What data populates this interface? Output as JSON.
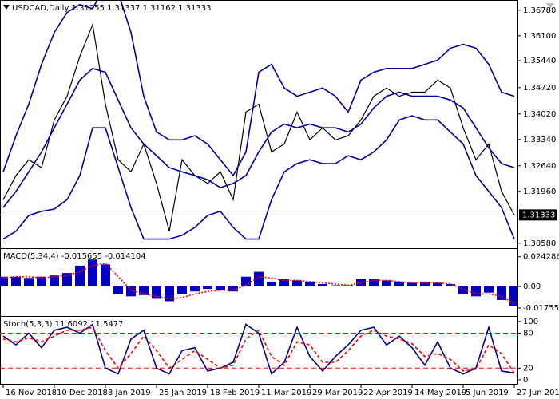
{
  "chart_data": [
    {
      "type": "line",
      "title": "USDCAD,Daily  1.31255 1.31337 1.31162 1.31333",
      "xlim": [
        -1,
        161
      ],
      "ylim": [
        1.3047,
        1.3703
      ],
      "yticks": [
        {
          "value": 1.3678,
          "label": "1.36780"
        },
        {
          "value": 1.361,
          "label": "1.36100"
        },
        {
          "value": 1.3544,
          "label": "1.35440"
        },
        {
          "value": 1.3472,
          "label": "1.34720"
        },
        {
          "value": 1.3402,
          "label": "1.34020"
        },
        {
          "value": 1.3334,
          "label": "1.33340"
        },
        {
          "value": 1.3264,
          "label": "1.32640"
        },
        {
          "value": 1.3196,
          "label": "1.31960"
        },
        {
          "value": 1.3058,
          "label": "1.30580"
        }
      ],
      "current": 1.31333,
      "x": [
        0,
        4,
        8,
        12,
        16,
        20,
        24,
        28,
        32,
        36,
        40,
        44,
        48,
        52,
        56,
        60,
        64,
        68,
        72,
        76,
        80,
        84,
        88,
        92,
        96,
        100,
        104,
        108,
        112,
        116,
        120,
        124,
        128,
        132,
        136,
        140,
        144,
        148,
        152,
        156,
        160
      ],
      "series": [
        {
          "name": "Close",
          "color": "#000000",
          "style": "solid",
          "values": [
            1.3174,
            1.3238,
            1.328,
            1.3259,
            1.3386,
            1.3449,
            1.3555,
            1.364,
            1.3428,
            1.328,
            1.3248,
            1.3322,
            1.3217,
            1.309,
            1.328,
            1.3238,
            1.3217,
            1.3248,
            1.3174,
            1.3407,
            1.3428,
            1.3301,
            1.3322,
            1.3407,
            1.3333,
            1.3365,
            1.3333,
            1.3344,
            1.3386,
            1.3449,
            1.3471,
            1.3449,
            1.346,
            1.346,
            1.3492,
            1.3471,
            1.3365,
            1.328,
            1.3322,
            1.3196,
            1.3133
          ]
        },
        {
          "name": "Upper band",
          "color": "#0000a0",
          "style": "solid",
          "values": [
            1.3248,
            1.3344,
            1.3428,
            1.3534,
            1.3619,
            1.3672,
            1.3693,
            1.3682,
            1.3746,
            1.3725,
            1.3619,
            1.3449,
            1.3354,
            1.3333,
            1.3333,
            1.3344,
            1.3322,
            1.328,
            1.3238,
            1.3301,
            1.3513,
            1.3534,
            1.3471,
            1.3449,
            1.346,
            1.3471,
            1.3449,
            1.3407,
            1.3492,
            1.3513,
            1.3523,
            1.3523,
            1.3523,
            1.3534,
            1.3545,
            1.3577,
            1.3587,
            1.3577,
            1.3534,
            1.346,
            1.3449
          ]
        },
        {
          "name": "Middle band",
          "color": "#0000a0",
          "style": "solid",
          "values": [
            1.3153,
            1.3196,
            1.3248,
            1.3301,
            1.3365,
            1.3428,
            1.3492,
            1.3523,
            1.3513,
            1.3439,
            1.3365,
            1.3322,
            1.3291,
            1.3259,
            1.3248,
            1.3238,
            1.3227,
            1.3206,
            1.3217,
            1.3238,
            1.3301,
            1.3354,
            1.3375,
            1.3365,
            1.3375,
            1.3365,
            1.3365,
            1.3354,
            1.3375,
            1.3418,
            1.3449,
            1.346,
            1.3449,
            1.3449,
            1.3449,
            1.3439,
            1.3418,
            1.3365,
            1.3312,
            1.327,
            1.3259
          ]
        },
        {
          "name": "Lower band",
          "color": "#0000a0",
          "style": "solid",
          "values": [
            1.3069,
            1.309,
            1.3132,
            1.3143,
            1.3149,
            1.3174,
            1.3238,
            1.3365,
            1.3365,
            1.3259,
            1.3153,
            1.3069,
            1.3069,
            1.3069,
            1.3079,
            1.31,
            1.3132,
            1.3143,
            1.31,
            1.3069,
            1.3069,
            1.3174,
            1.3248,
            1.327,
            1.328,
            1.327,
            1.327,
            1.3291,
            1.328,
            1.3301,
            1.3333,
            1.3386,
            1.3397,
            1.3386,
            1.3386,
            1.3354,
            1.3322,
            1.3238,
            1.3196,
            1.3153,
            1.3069
          ]
        }
      ]
    },
    {
      "type": "bar",
      "title": "MACD(5,34,4) -0.015655 -0.014104",
      "xlim": [
        -1,
        161
      ],
      "ylim": [
        -0.0234,
        0.0306
      ],
      "yticks": [
        0.024286,
        {
          "value": 0,
          "label": "0.00"
        },
        -0.017557
      ],
      "x": [
        0,
        4,
        8,
        12,
        16,
        20,
        24,
        28,
        32,
        36,
        40,
        44,
        48,
        52,
        56,
        60,
        64,
        68,
        72,
        76,
        80,
        84,
        88,
        92,
        96,
        100,
        104,
        108,
        112,
        116,
        120,
        124,
        128,
        132,
        136,
        140,
        144,
        148,
        152,
        156,
        160
      ],
      "series": [
        {
          "name": "MACD",
          "color": "#0000c0",
          "style": "histogram",
          "values": [
            0.008,
            0.008,
            0.007,
            0.008,
            0.009,
            0.011,
            0.017,
            0.022,
            0.018,
            -0.006,
            -0.008,
            -0.007,
            -0.01,
            -0.012,
            -0.006,
            -0.004,
            -0.002,
            -0.003,
            -0.004,
            0.008,
            0.012,
            0.004,
            0.006,
            0.005,
            0.004,
            0.002,
            0.001,
            0.001,
            0.006,
            0.006,
            0.005,
            0.004,
            0.003,
            0.004,
            0.003,
            0.002,
            -0.006,
            -0.008,
            -0.005,
            -0.011,
            -0.015655
          ]
        },
        {
          "name": "Signal",
          "color": "#ff0000",
          "style": "dotted",
          "values": [
            0.007,
            0.008,
            0.008,
            0.007,
            0.008,
            0.009,
            0.012,
            0.017,
            0.019,
            0.008,
            -0.003,
            -0.006,
            -0.008,
            -0.01,
            -0.009,
            -0.006,
            -0.004,
            -0.003,
            -0.003,
            0.001,
            0.008,
            0.007,
            0.005,
            0.005,
            0.004,
            0.003,
            0.002,
            0.001,
            0.003,
            0.005,
            0.005,
            0.004,
            0.003,
            0.003,
            0.003,
            0.002,
            -0.002,
            -0.006,
            -0.006,
            -0.008,
            -0.014104
          ]
        }
      ]
    },
    {
      "type": "line",
      "title": "Stoch(5,3,3) 11.6092 11.5477",
      "xlim": [
        -1,
        161
      ],
      "ylim": [
        -7,
        108
      ],
      "yticks": [
        100,
        80,
        20,
        0
      ],
      "levels": [
        80,
        20
      ],
      "levels_color": "#ff0000",
      "x": [
        0,
        4,
        8,
        12,
        16,
        20,
        24,
        28,
        32,
        36,
        40,
        44,
        48,
        52,
        56,
        60,
        64,
        68,
        72,
        76,
        80,
        84,
        88,
        92,
        96,
        100,
        104,
        108,
        112,
        116,
        120,
        124,
        128,
        132,
        136,
        140,
        144,
        148,
        152,
        156,
        160
      ],
      "xticks": [
        {
          "value": 0,
          "label": "16 Nov 2018"
        },
        {
          "value": 16,
          "label": "10 Dec 2018"
        },
        {
          "value": 32,
          "label": "3 Jan 2019"
        },
        {
          "value": 48,
          "label": "25 Jan 2019"
        },
        {
          "value": 64,
          "label": "18 Feb 2019"
        },
        {
          "value": 80,
          "label": "11 Mar 2019"
        },
        {
          "value": 96,
          "label": "29 Mar 2019"
        },
        {
          "value": 112,
          "label": "22 Apr 2019"
        },
        {
          "value": 128,
          "label": "14 May 2019"
        },
        {
          "value": 144,
          "label": "5 Jun 2019"
        },
        {
          "value": 160,
          "label": "27 Jun 2019"
        }
      ],
      "series": [
        {
          "name": "Main",
          "color": "#00008b",
          "style": "solid",
          "values": [
            75,
            60,
            80,
            55,
            85,
            90,
            80,
            95,
            20,
            10,
            70,
            85,
            20,
            10,
            50,
            55,
            15,
            20,
            30,
            95,
            80,
            10,
            30,
            90,
            40,
            15,
            40,
            60,
            85,
            90,
            60,
            75,
            55,
            25,
            65,
            20,
            10,
            20,
            90,
            15,
            11.6092
          ]
        },
        {
          "name": "Signal",
          "color": "#ff0000",
          "style": "dashed",
          "values": [
            70,
            65,
            72,
            65,
            75,
            85,
            85,
            90,
            50,
            20,
            45,
            75,
            50,
            20,
            35,
            50,
            35,
            20,
            25,
            70,
            85,
            40,
            25,
            65,
            60,
            30,
            30,
            50,
            75,
            85,
            75,
            70,
            62,
            40,
            45,
            35,
            15,
            18,
            60,
            45,
            11.5477
          ]
        }
      ]
    }
  ]
}
